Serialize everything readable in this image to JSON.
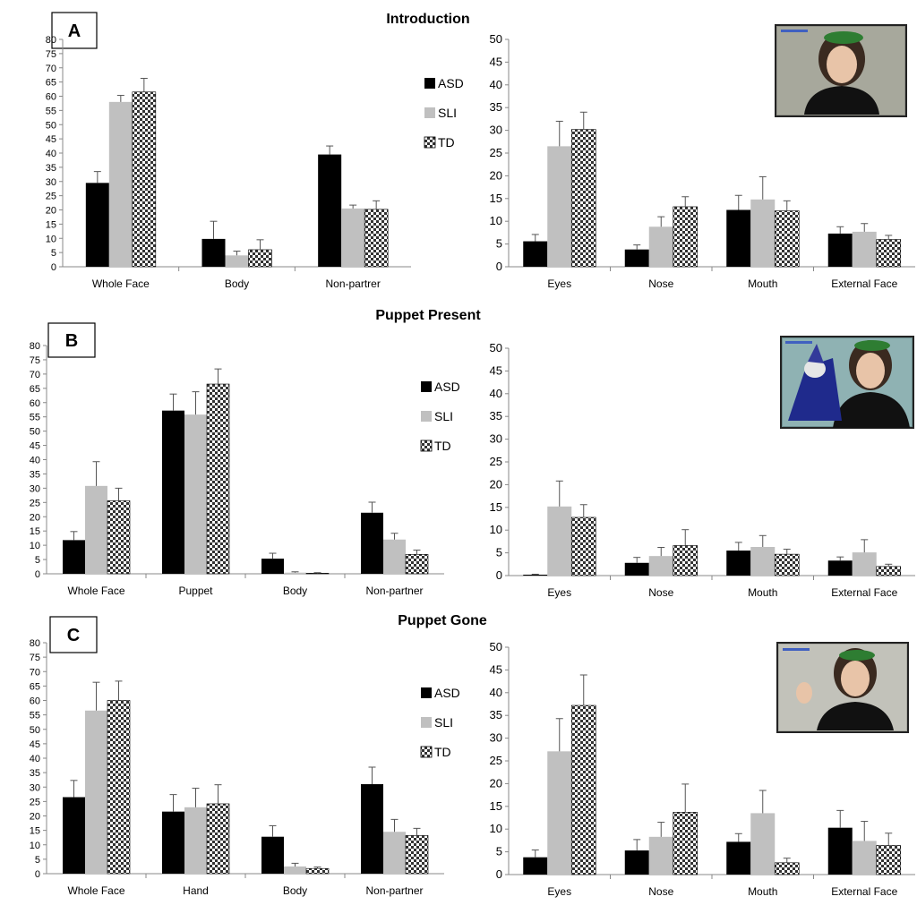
{
  "colors": {
    "ASD": "#000000",
    "SLI": "#c0c0c0",
    "TD": "checker-pattern"
  },
  "legend": [
    "ASD",
    "SLI",
    "TD"
  ],
  "photos": {
    "introduction": "woman-with-green-hat-photo",
    "puppet_present": "woman-with-wizard-puppet-photo",
    "puppet_gone": "woman-waving-hand-photo"
  },
  "chart_data": [
    {
      "id": "intro_left",
      "type": "bar",
      "panel_letter": "A",
      "section_title": "Introduction",
      "ylim": [
        0,
        80
      ],
      "ytick_step": 5,
      "categories": [
        "Whole Face",
        "Body",
        "Non-partrer"
      ],
      "series": [
        {
          "name": "ASD",
          "values": [
            29.5,
            9.8,
            39.5
          ],
          "errors": [
            4.0,
            6.2,
            3.0
          ]
        },
        {
          "name": "SLI",
          "values": [
            58.0,
            4.0,
            20.5
          ],
          "errors": [
            2.3,
            1.5,
            1.2
          ]
        },
        {
          "name": "TD",
          "values": [
            61.5,
            6.0,
            20.2
          ],
          "errors": [
            4.8,
            3.5,
            3.0
          ]
        }
      ]
    },
    {
      "id": "intro_right",
      "type": "bar",
      "ylim": [
        0,
        50
      ],
      "ytick_step": 5,
      "categories": [
        "Eyes",
        "Nose",
        "Mouth",
        "External Face"
      ],
      "series": [
        {
          "name": "ASD",
          "values": [
            5.6,
            3.8,
            12.5,
            7.3
          ],
          "errors": [
            1.5,
            1.0,
            3.2,
            1.5
          ]
        },
        {
          "name": "SLI",
          "values": [
            26.5,
            8.8,
            14.8,
            7.7
          ],
          "errors": [
            5.5,
            2.2,
            5.0,
            1.8
          ]
        },
        {
          "name": "TD",
          "values": [
            30.2,
            13.2,
            12.3,
            6.0
          ],
          "errors": [
            3.8,
            2.2,
            2.2,
            0.9
          ]
        }
      ]
    },
    {
      "id": "present_left",
      "type": "bar",
      "panel_letter": "B",
      "section_title": "Puppet Present",
      "ylim": [
        0,
        80
      ],
      "ytick_step": 5,
      "categories": [
        "Whole Face",
        "Puppet",
        "Body",
        "Non-partner"
      ],
      "series": [
        {
          "name": "ASD",
          "values": [
            11.8,
            57.2,
            5.3,
            21.4
          ],
          "errors": [
            3.0,
            5.8,
            1.9,
            3.7
          ]
        },
        {
          "name": "SLI",
          "values": [
            30.8,
            55.8,
            0.4,
            12.0
          ],
          "errors": [
            8.5,
            8.0,
            0.3,
            2.2
          ]
        },
        {
          "name": "TD",
          "values": [
            25.6,
            66.5,
            0.2,
            6.8
          ],
          "errors": [
            4.4,
            5.3,
            0.2,
            1.5
          ]
        }
      ]
    },
    {
      "id": "present_right",
      "type": "bar",
      "ylim": [
        0,
        50
      ],
      "ytick_step": 5,
      "categories": [
        "Eyes",
        "Nose",
        "Mouth",
        "External Face"
      ],
      "series": [
        {
          "name": "ASD",
          "values": [
            0.2,
            2.8,
            5.5,
            3.3
          ],
          "errors": [
            0.1,
            1.2,
            1.8,
            0.8
          ]
        },
        {
          "name": "SLI",
          "values": [
            15.2,
            4.3,
            6.3,
            5.1
          ],
          "errors": [
            5.6,
            1.9,
            2.5,
            2.8
          ]
        },
        {
          "name": "TD",
          "values": [
            12.8,
            6.6,
            4.7,
            2.0
          ],
          "errors": [
            2.8,
            3.5,
            1.1,
            0.5
          ]
        }
      ]
    },
    {
      "id": "gone_left",
      "type": "bar",
      "panel_letter": "C",
      "section_title": "Puppet Gone",
      "ylim": [
        0,
        80
      ],
      "ytick_step": 5,
      "categories": [
        "Whole Face",
        "Hand",
        "Body",
        "Non-partner"
      ],
      "series": [
        {
          "name": "ASD",
          "values": [
            26.5,
            21.5,
            12.8,
            31.0
          ],
          "errors": [
            5.8,
            5.9,
            3.8,
            5.9
          ]
        },
        {
          "name": "SLI",
          "values": [
            56.5,
            23.0,
            2.5,
            14.5
          ],
          "errors": [
            9.8,
            6.6,
            1.1,
            4.3
          ]
        },
        {
          "name": "TD",
          "values": [
            60.0,
            24.2,
            1.8,
            13.2
          ],
          "errors": [
            6.7,
            6.6,
            0.5,
            2.5
          ]
        }
      ]
    },
    {
      "id": "gone_right",
      "type": "bar",
      "ylim": [
        0,
        50
      ],
      "ytick_step": 5,
      "categories": [
        "Eyes",
        "Nose",
        "Mouth",
        "External Face"
      ],
      "series": [
        {
          "name": "ASD",
          "values": [
            3.8,
            5.3,
            7.2,
            10.3
          ],
          "errors": [
            1.6,
            2.4,
            1.8,
            3.8
          ]
        },
        {
          "name": "SLI",
          "values": [
            27.1,
            8.3,
            13.5,
            7.4
          ],
          "errors": [
            7.2,
            3.2,
            5.0,
            4.3
          ]
        },
        {
          "name": "TD",
          "values": [
            37.2,
            13.7,
            2.6,
            6.4
          ],
          "errors": [
            6.7,
            6.2,
            1.0,
            2.7
          ]
        }
      ]
    }
  ]
}
